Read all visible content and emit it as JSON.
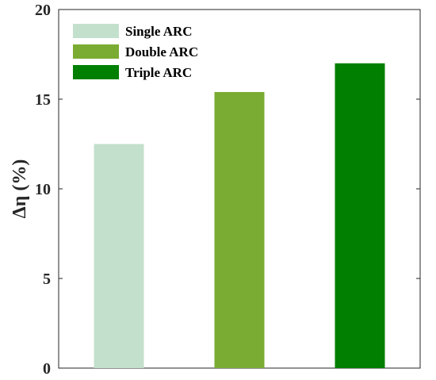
{
  "chart_data": {
    "type": "bar",
    "categories": [
      "Single ARC",
      "Double ARC",
      "Triple ARC"
    ],
    "values": [
      12.5,
      15.4,
      17.0
    ],
    "colors": [
      "#c3e0cc",
      "#7aac33",
      "#007f00"
    ],
    "title": "",
    "xlabel": "",
    "ylabel": "Δη (%)",
    "ylim": [
      0,
      20
    ],
    "yticks": [
      0,
      5,
      10,
      15,
      20
    ],
    "legend": {
      "position": "top-left",
      "entries": [
        "Single ARC",
        "Double ARC",
        "Triple ARC"
      ]
    },
    "grid": false
  }
}
